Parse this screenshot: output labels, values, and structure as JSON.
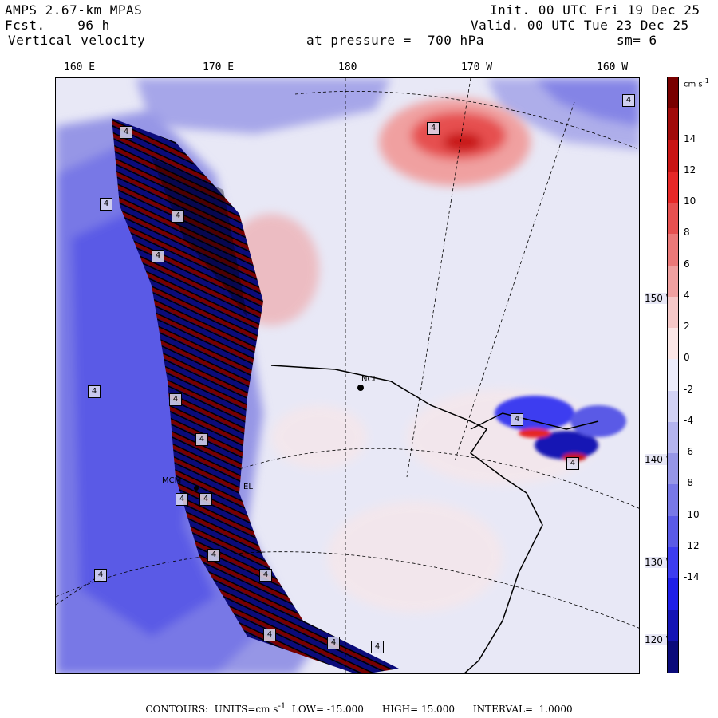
{
  "header": {
    "model": "AMPS 2.67-km MPAS",
    "fcst_label": "Fcst.",
    "fcst_value": "96 h",
    "variable": "Vertical velocity",
    "init": "Init. 00 UTC Fri 19 Dec 25",
    "valid": "Valid. 00 UTC Tue 23 Dec 25",
    "level": "at pressure =  700 hPa",
    "smooth": "sm= 6"
  },
  "top_ticks": [
    "160 E",
    "170 E",
    "180",
    "170 W",
    "160 W"
  ],
  "right_ticks": [
    "150 W",
    "140 W",
    "130 W",
    "120 W"
  ],
  "places": [
    "MCM",
    "NCL",
    "EL"
  ],
  "colorbar": {
    "units": "cm s",
    "units_exp": "-1",
    "levels": [
      "14",
      "12",
      "10",
      "8",
      "6",
      "4",
      "2",
      "0",
      "-2",
      "-4",
      "-6",
      "-8",
      "-10",
      "-12",
      "-14"
    ],
    "colors": [
      "#0b0b7a",
      "#1414b4",
      "#1e1ee6",
      "#3c3cf0",
      "#5a5ae6",
      "#7878e6",
      "#9696e6",
      "#b4b4ee",
      "#d2d2f4",
      "#ececfa",
      "#fae6e6",
      "#f5c8c8",
      "#f0a0a0",
      "#eb7878",
      "#e65050",
      "#e62828",
      "#c81414",
      "#a00a0a",
      "#780000"
    ]
  },
  "footer": {
    "contours_label": "CONTOURS:",
    "units_label": "UNITS=cm s",
    "units_exp": "-1",
    "low_label": "LOW=",
    "low": "-15.000",
    "high_label": "HIGH=",
    "high": "15.000",
    "interval_label": "INTERVAL=",
    "interval": "1.0000"
  },
  "box_labels": [
    "4",
    "4",
    "4",
    "4",
    "4",
    "4",
    "4",
    "4",
    "4",
    "4",
    "4",
    "4",
    "4",
    "4",
    "4",
    "4",
    "4",
    "4",
    "4"
  ]
}
